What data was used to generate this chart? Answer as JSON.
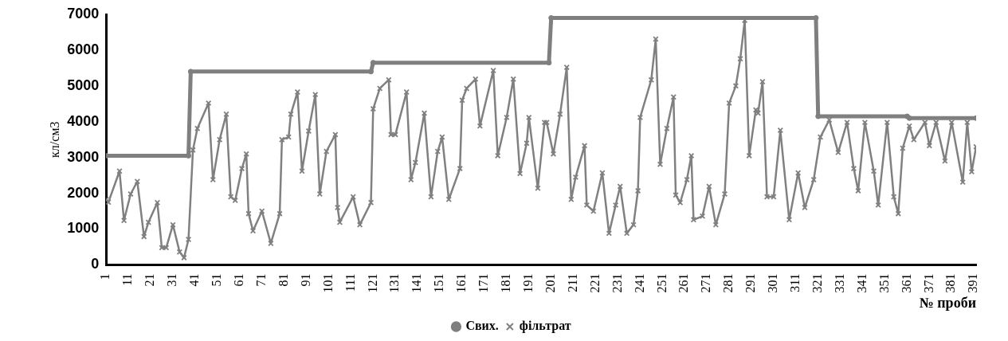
{
  "chart_data": {
    "type": "line",
    "ylabel": "кл/см3",
    "xlabel": "№ проби",
    "xlim": [
      1,
      392
    ],
    "xticks": [
      1,
      11,
      21,
      31,
      41,
      51,
      61,
      71,
      81,
      91,
      101,
      111,
      121,
      131,
      141,
      151,
      161,
      171,
      181,
      191,
      201,
      211,
      221,
      231,
      241,
      251,
      261,
      271,
      281,
      291,
      301,
      311,
      321,
      331,
      341,
      351,
      361,
      371,
      381,
      391
    ],
    "ylim": [
      0,
      7000
    ],
    "yticks": [
      0,
      1000,
      2000,
      3000,
      4000,
      5000,
      6000,
      7000
    ],
    "grid": false,
    "legend": "bottom",
    "line_style": "solid",
    "series": [
      {
        "name": "Свих.",
        "color": "#7f7f7f",
        "marker": "circle",
        "x": [
          1,
          38,
          39,
          120,
          121,
          200,
          201,
          320,
          321,
          361,
          362,
          392
        ],
        "values": [
          3050,
          3050,
          5400,
          5400,
          5650,
          5650,
          6900,
          6900,
          4150,
          4150,
          4100,
          4100
        ]
      },
      {
        "name": "фільтрат",
        "color": "#808080",
        "marker": "cross",
        "x": [
          1,
          2,
          7,
          9,
          12,
          15,
          18,
          20,
          24,
          26,
          28,
          31,
          34,
          36,
          38,
          40,
          42,
          47,
          49,
          52,
          55,
          57,
          59,
          62,
          64,
          65,
          67,
          71,
          75,
          79,
          80,
          83,
          84,
          87,
          89,
          92,
          95,
          97,
          100,
          104,
          105,
          106,
          112,
          115,
          120,
          121,
          124,
          128,
          129,
          131,
          136,
          138,
          140,
          144,
          147,
          150,
          152,
          155,
          160,
          161,
          163,
          167,
          169,
          175,
          177,
          181,
          184,
          187,
          190,
          191,
          195,
          198,
          199,
          202,
          205,
          208,
          210,
          212,
          216,
          217,
          220,
          224,
          227,
          230,
          232,
          235,
          238,
          240,
          241,
          246,
          248,
          250,
          253,
          256,
          257,
          259,
          262,
          264,
          265,
          269,
          272,
          275,
          279,
          281,
          284,
          286,
          288,
          290,
          293,
          294,
          296,
          298,
          301,
          304,
          308,
          312,
          315,
          319,
          322,
          326,
          330,
          334,
          337,
          339,
          342,
          346,
          348,
          352,
          355,
          357,
          359,
          362,
          364,
          369,
          371,
          374,
          378,
          381,
          386,
          388,
          390,
          392
        ],
        "values": [
          1830,
          1750,
          2620,
          1240,
          1980,
          2330,
          790,
          1190,
          1740,
          480,
          480,
          1120,
          360,
          200,
          710,
          3210,
          3810,
          4520,
          2380,
          3500,
          4210,
          1900,
          1800,
          2690,
          3100,
          1430,
          950,
          1500,
          600,
          1430,
          3500,
          3570,
          4210,
          4830,
          2620,
          3740,
          4760,
          1980,
          3170,
          3640,
          1600,
          1190,
          1900,
          1120,
          1740,
          4360,
          4930,
          5170,
          3640,
          3640,
          4830,
          2380,
          2860,
          4240,
          1900,
          3170,
          3570,
          1830,
          2690,
          4600,
          4930,
          5190,
          3880,
          5430,
          3050,
          4120,
          5190,
          2550,
          3400,
          4120,
          2140,
          3980,
          3980,
          3100,
          4210,
          5520,
          1830,
          2450,
          3330,
          1670,
          1500,
          2570,
          880,
          1670,
          2190,
          880,
          1120,
          2070,
          4120,
          5170,
          6310,
          2810,
          3810,
          4690,
          1950,
          1740,
          2380,
          3050,
          1260,
          1360,
          2190,
          1120,
          1980,
          4520,
          5000,
          5760,
          6830,
          3050,
          4330,
          4240,
          5120,
          1900,
          1900,
          3760,
          1260,
          2570,
          1600,
          2380,
          3570,
          4050,
          3140,
          3980,
          2690,
          2070,
          3980,
          2620,
          1670,
          3980,
          1900,
          1430,
          3260,
          3880,
          3500,
          3980,
          3330,
          3980,
          2900,
          3980,
          2310,
          3980,
          2600,
          3300
        ]
      }
    ]
  }
}
